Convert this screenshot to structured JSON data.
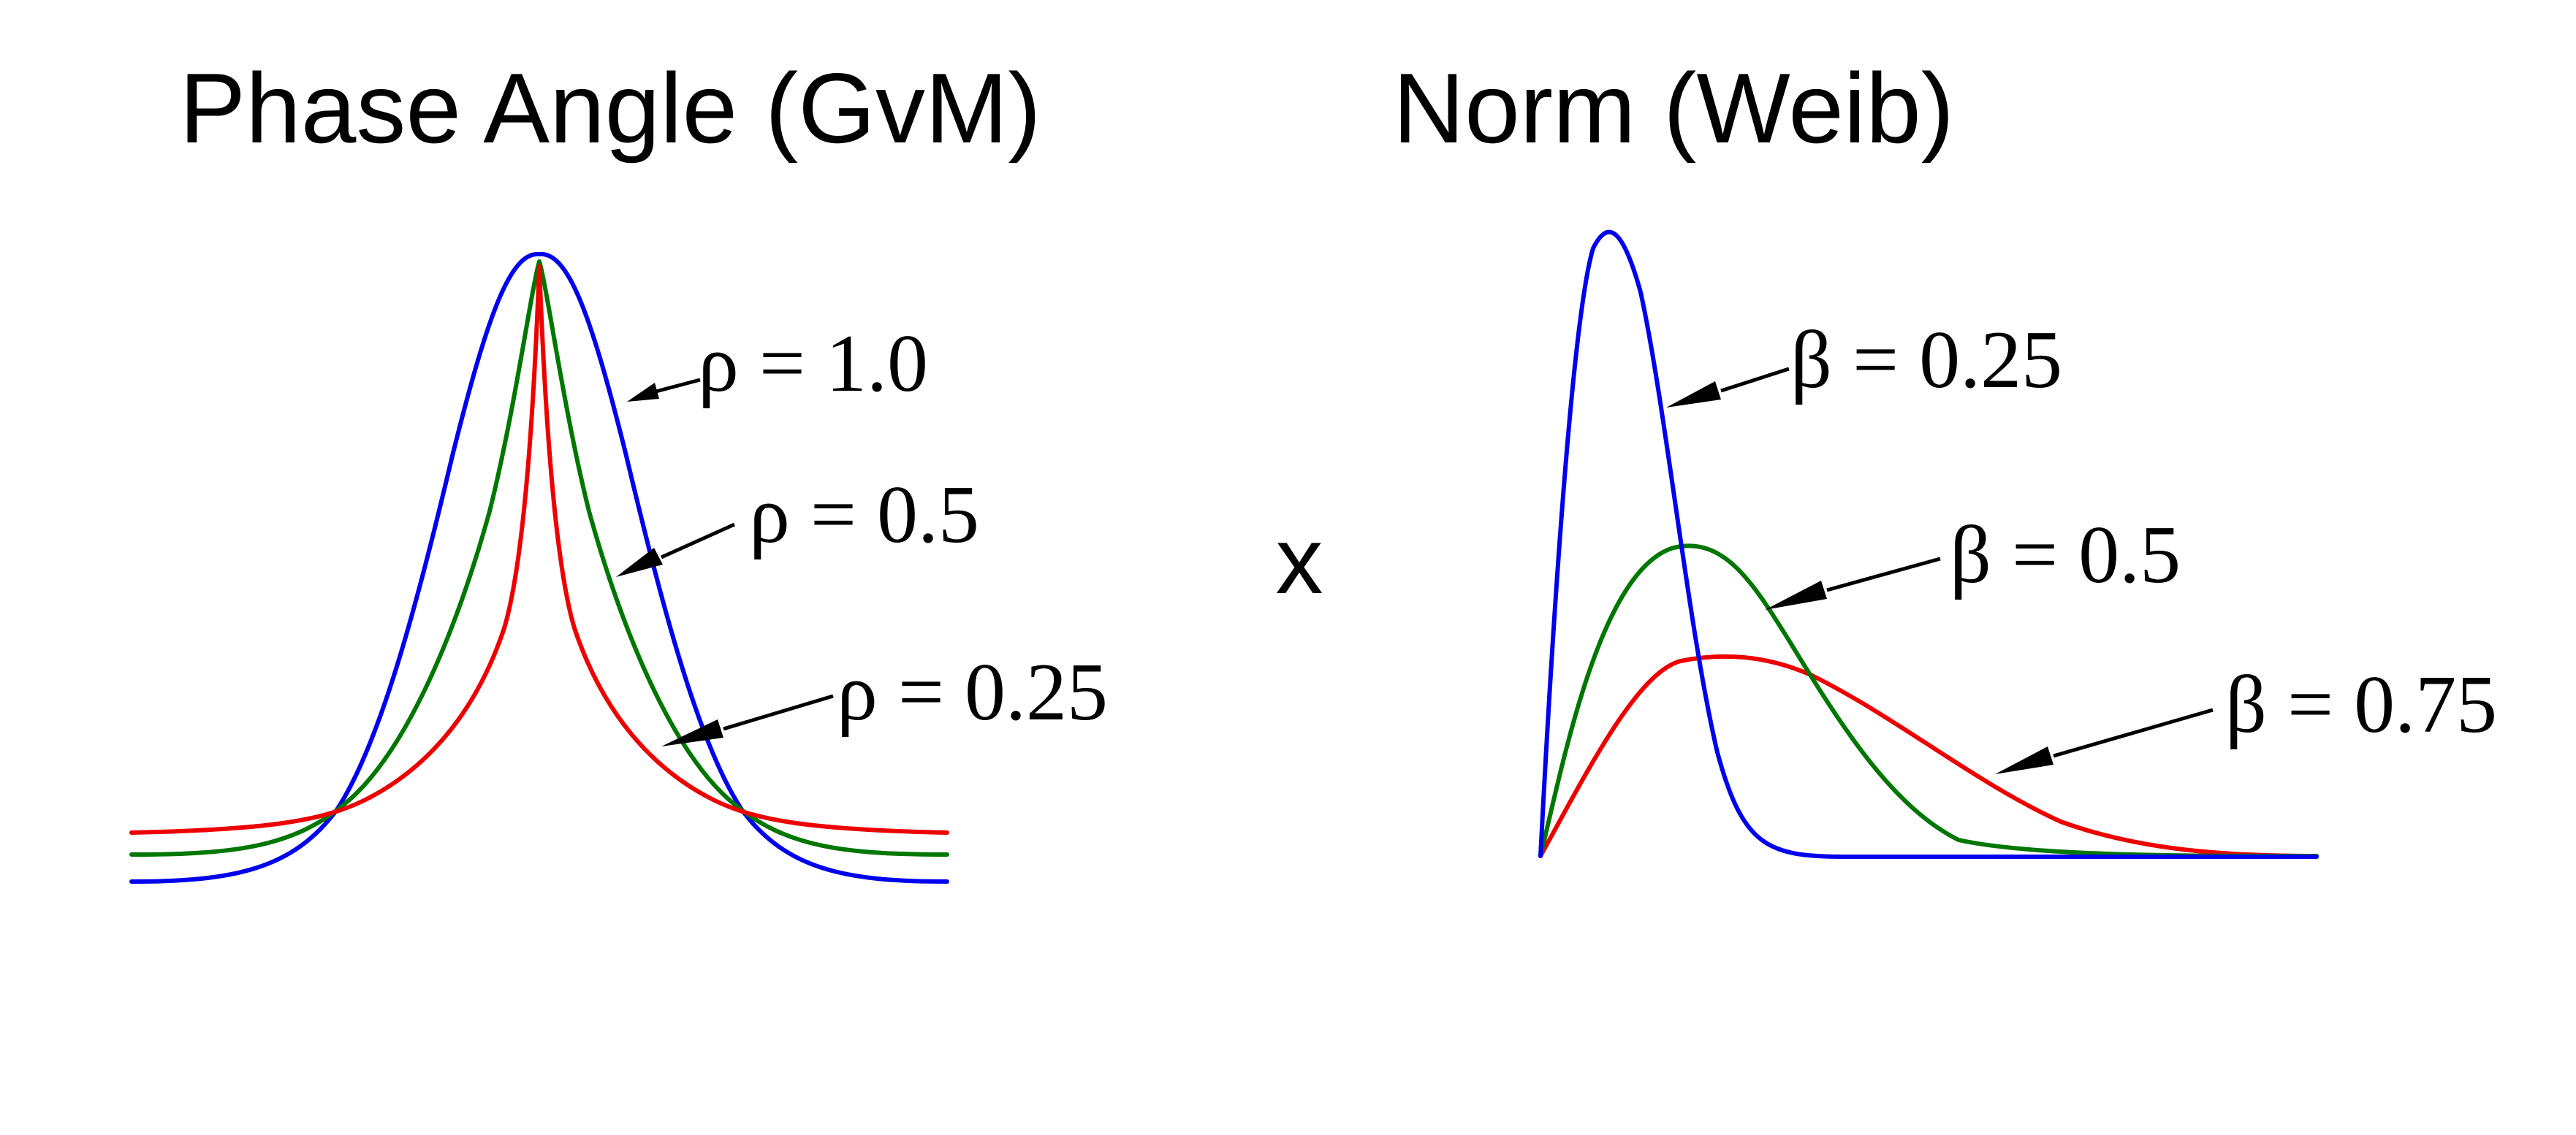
{
  "operator": "x",
  "colors": {
    "blue": "#0000ee",
    "green": "#007700",
    "red": "#ee0000",
    "text": "#000000",
    "background": "#ffffff"
  },
  "left_panel": {
    "title": "Phase Angle (GvM)",
    "curves": [
      {
        "label": "ρ = 1.0",
        "color": "blue"
      },
      {
        "label": "ρ = 0.5",
        "color": "green"
      },
      {
        "label": "ρ = 0.25",
        "color": "red"
      }
    ]
  },
  "right_panel": {
    "title": "Norm (Weib)",
    "curves": [
      {
        "label": "β = 0.25",
        "color": "blue"
      },
      {
        "label": "β = 0.5",
        "color": "green"
      },
      {
        "label": "β = 0.75",
        "color": "red"
      }
    ]
  }
}
